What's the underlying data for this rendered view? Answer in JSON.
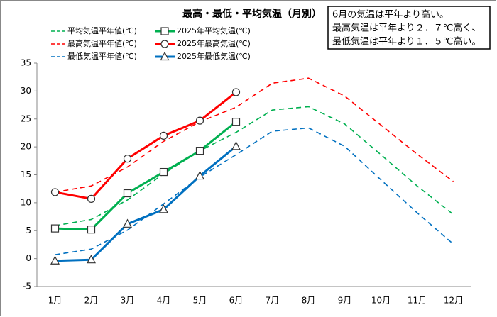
{
  "chart_data": {
    "type": "line",
    "title": "最高・最低・平均気温（月別）",
    "annotations": [
      "6月の気温は平年より高い。",
      "最高気温は平年より２．７℃高く、",
      "最低気温は平年より１．５℃高い。"
    ],
    "categories": [
      "1月",
      "2月",
      "3月",
      "4月",
      "5月",
      "6月",
      "7月",
      "8月",
      "9月",
      "10月",
      "11月",
      "12月"
    ],
    "ylim": [
      -5,
      35
    ],
    "yticks": [
      -5,
      0,
      5,
      10,
      15,
      20,
      25,
      30,
      35
    ],
    "grid": false,
    "series": [
      {
        "name": "平均気温平年値(℃)",
        "color": "#00b050",
        "dashed": true,
        "values": [
          5.9,
          7.0,
          10.5,
          15.2,
          19.3,
          22.6,
          26.6,
          27.2,
          24.1,
          18.6,
          13.0,
          7.9
        ]
      },
      {
        "name": "2025年平均気温(℃)",
        "color": "#00b050",
        "marker": "square",
        "values": [
          5.4,
          5.2,
          11.7,
          15.5,
          19.3,
          24.5,
          null,
          null,
          null,
          null,
          null,
          null
        ]
      },
      {
        "name": "最高気温平年値(℃)",
        "color": "#ff0000",
        "dashed": true,
        "values": [
          11.9,
          13.0,
          16.4,
          21.0,
          24.5,
          27.1,
          31.4,
          32.3,
          29.1,
          23.9,
          18.7,
          13.8
        ]
      },
      {
        "name": "2025年最高気温(℃)",
        "color": "#ff0000",
        "marker": "circle",
        "values": [
          11.9,
          10.7,
          17.9,
          22.0,
          24.7,
          29.8,
          null,
          null,
          null,
          null,
          null,
          null
        ]
      },
      {
        "name": "最低気温平年値(℃)",
        "color": "#0070c0",
        "dashed": true,
        "values": [
          0.7,
          1.7,
          5.1,
          9.8,
          14.6,
          18.6,
          22.8,
          23.4,
          20.1,
          14.1,
          8.2,
          2.6
        ]
      },
      {
        "name": "2025年最低気温(℃)",
        "color": "#0070c0",
        "marker": "triangle",
        "values": [
          -0.4,
          -0.2,
          6.2,
          8.8,
          14.8,
          20.1,
          null,
          null,
          null,
          null,
          null,
          null
        ]
      }
    ]
  }
}
